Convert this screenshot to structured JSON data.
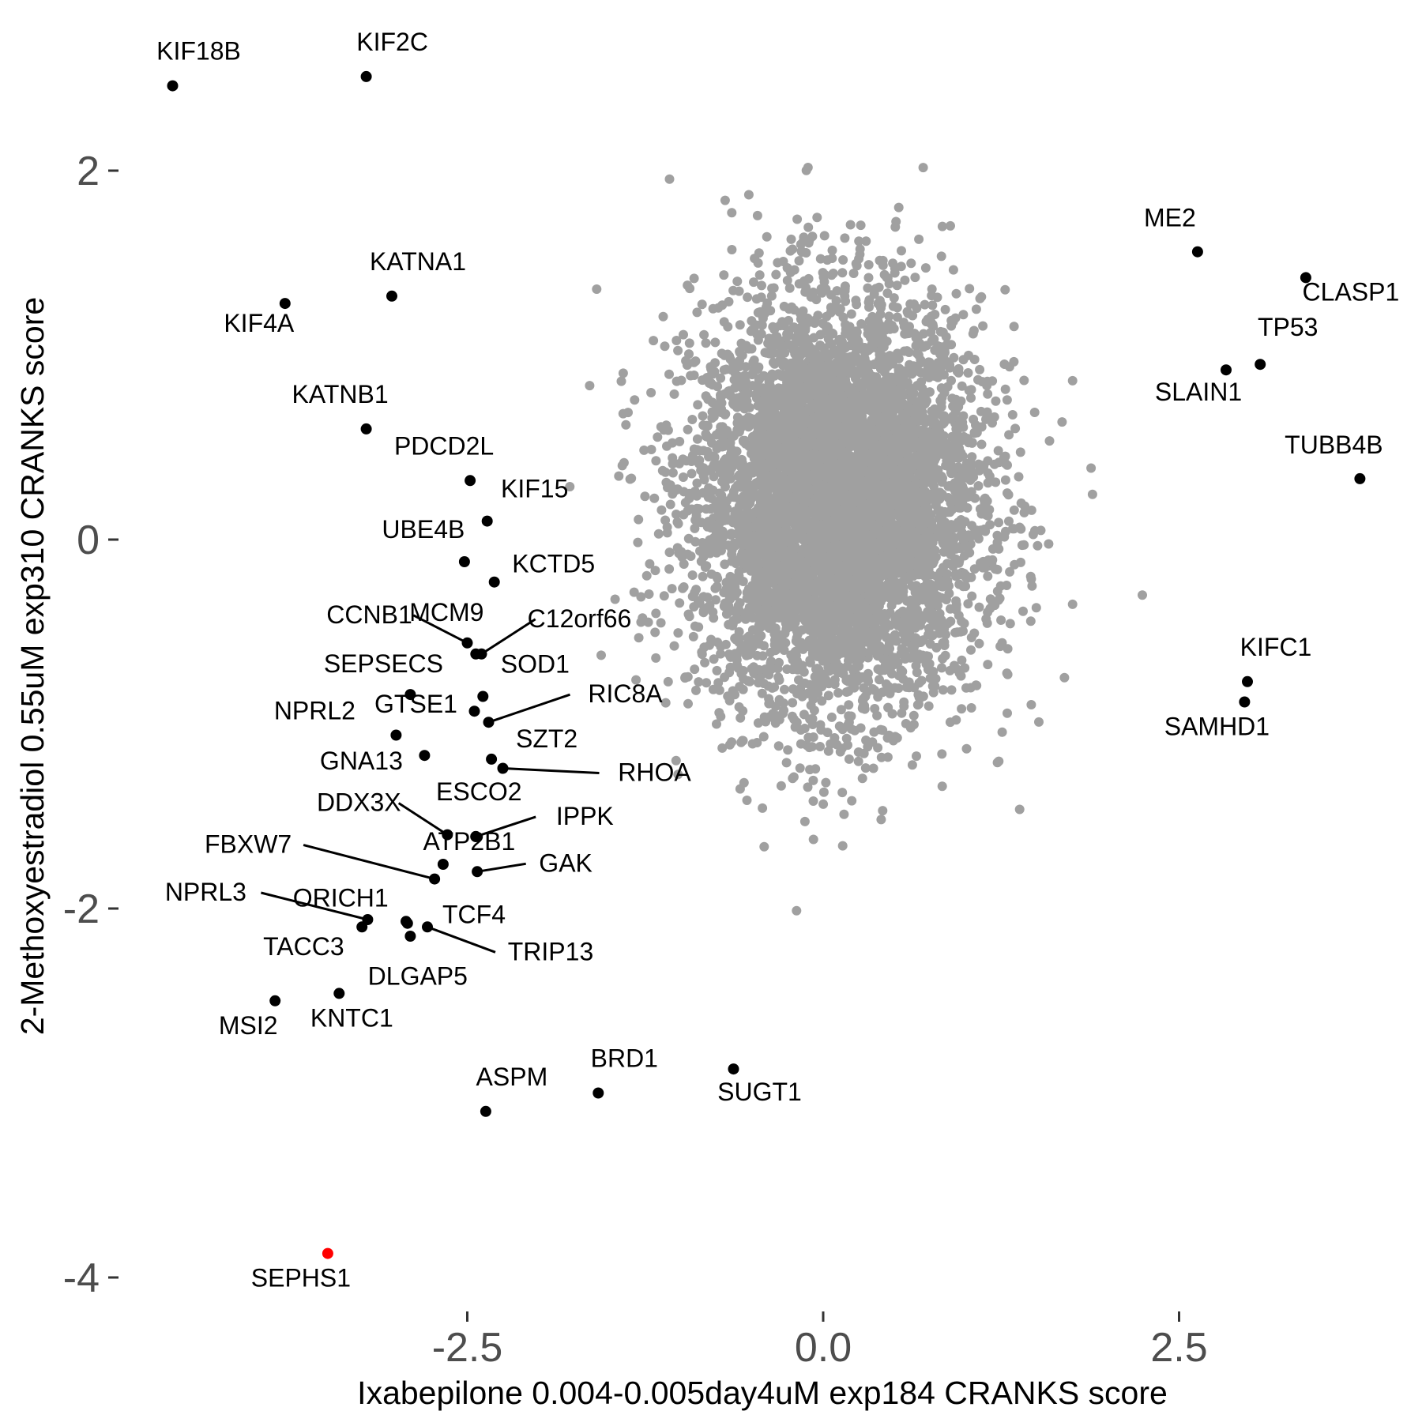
{
  "chart_data": {
    "type": "scatter",
    "xlabel": "Ixabepilone 0.004-0.005day4uM exp184 CRANKS score",
    "ylabel": "2-Methoxyestradiol 0.55uM exp310 CRANKS score",
    "xlim": [
      -4.8,
      4.2
    ],
    "ylim": [
      -4.2,
      2.55
    ],
    "x_ticks": [
      -2.5,
      0.0,
      2.5
    ],
    "x_tick_labels": [
      "-2.5",
      "0.0",
      "2.5"
    ],
    "y_ticks": [
      -4,
      -2,
      0,
      2
    ],
    "y_tick_labels": [
      "-4",
      "-2",
      "0",
      "2"
    ],
    "grid": false,
    "colors": {
      "background_points": "#a0a0a0",
      "highlight_points": "#000000",
      "focus_point": "#ff0000",
      "ticks": "#4d4d4d"
    },
    "background_cloud": {
      "center": [
        0.1,
        0.2
      ],
      "approx_spread_sd": [
        0.5,
        0.55
      ],
      "approx_count": 6000
    },
    "series": [
      {
        "points": [
          {
            "label": "KIF18B",
            "x": -4.57,
            "y": 2.46
          },
          {
            "label": "KIF2C",
            "x": -3.21,
            "y": 2.51
          },
          {
            "label": "KATNA1",
            "x": -3.03,
            "y": 1.32
          },
          {
            "label": "KIF4A",
            "x": -3.78,
            "y": 1.28
          },
          {
            "label": "KATNB1",
            "x": -3.21,
            "y": 0.6
          },
          {
            "label": "PDCD2L",
            "x": -2.48,
            "y": 0.32
          },
          {
            "label": "KIF15",
            "x": -2.36,
            "y": 0.1
          },
          {
            "label": "UBE4B",
            "x": -2.52,
            "y": -0.12
          },
          {
            "label": "KCTD5",
            "x": -2.31,
            "y": -0.23
          },
          {
            "label": "CCNB1",
            "x": -2.5,
            "y": -0.56
          },
          {
            "label": "MCM9",
            "x": -2.44,
            "y": -0.62
          },
          {
            "label": "C12orf66",
            "x": -2.4,
            "y": -0.62
          },
          {
            "label": "SEPSECS",
            "x": -2.9,
            "y": -0.84
          },
          {
            "label": "SOD1",
            "x": -2.39,
            "y": -0.85
          },
          {
            "label": "NPRL2",
            "x": -3.0,
            "y": -1.06
          },
          {
            "label": "GTSE1",
            "x": -2.45,
            "y": -0.93
          },
          {
            "label": "RIC8A",
            "x": -2.35,
            "y": -0.99
          },
          {
            "label": "GNA13",
            "x": -2.8,
            "y": -1.17
          },
          {
            "label": "SZT2",
            "x": -2.33,
            "y": -1.19
          },
          {
            "label": "RHOA",
            "x": -2.25,
            "y": -1.24
          },
          {
            "label": "DDX3X",
            "x": -2.64,
            "y": -1.6
          },
          {
            "label": "ESCO2",
            "x": -2.44,
            "y": -1.61
          },
          {
            "label": "IPPK",
            "x": -2.44,
            "y": -1.61
          },
          {
            "label": "ATP2B1",
            "x": -2.67,
            "y": -1.76
          },
          {
            "label": "FBXW7",
            "x": -2.73,
            "y": -1.84
          },
          {
            "label": "GAK",
            "x": -2.43,
            "y": -1.8
          },
          {
            "label": "NPRL3",
            "x": -3.2,
            "y": -2.06
          },
          {
            "label": "ORICH1",
            "x": -3.24,
            "y": -2.1
          },
          {
            "label": "TACC3",
            "x": -2.9,
            "y": -2.15
          },
          {
            "label": "TCF4",
            "x": -2.93,
            "y": -2.07
          },
          {
            "label": "TRIP13",
            "x": -2.78,
            "y": -2.1
          },
          {
            "label": "DLGAP5",
            "x": -2.92,
            "y": -2.08
          },
          {
            "label": "MSI2",
            "x": -3.85,
            "y": -2.5
          },
          {
            "label": "KNTC1",
            "x": -3.4,
            "y": -2.46
          },
          {
            "label": "ASPM",
            "x": -2.37,
            "y": -3.1
          },
          {
            "label": "BRD1",
            "x": -1.58,
            "y": -3.0
          },
          {
            "label": "SUGT1",
            "x": -0.63,
            "y": -2.87
          },
          {
            "label": "ME2",
            "x": 2.63,
            "y": 1.56
          },
          {
            "label": "CLASP1",
            "x": 3.39,
            "y": 1.42
          },
          {
            "label": "TP53",
            "x": 3.07,
            "y": 0.95
          },
          {
            "label": "SLAIN1",
            "x": 2.83,
            "y": 0.92
          },
          {
            "label": "TUBB4B",
            "x": 3.77,
            "y": 0.33
          },
          {
            "label": "KIFC1",
            "x": 2.98,
            "y": -0.77
          },
          {
            "label": "SAMHD1",
            "x": 2.96,
            "y": -0.88
          },
          {
            "label": "SEPHS1",
            "x": -3.48,
            "y": -3.87,
            "highlight": true
          }
        ]
      }
    ]
  }
}
